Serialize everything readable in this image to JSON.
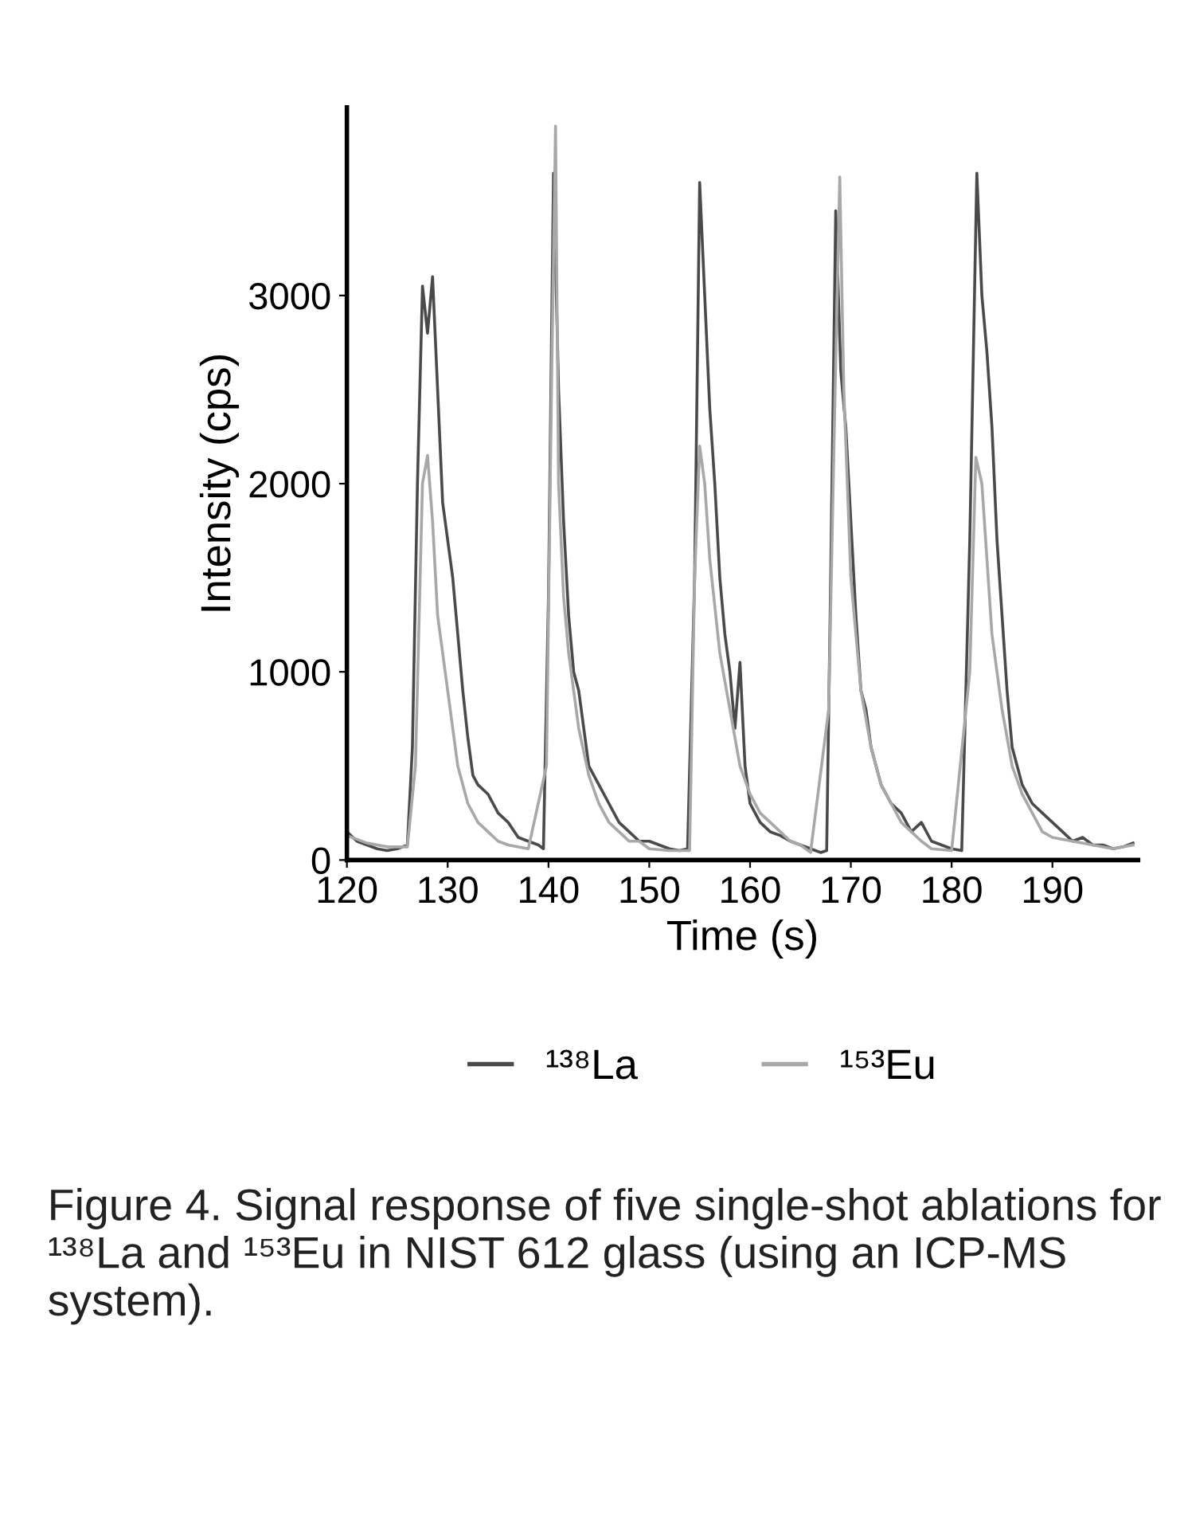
{
  "chart_data": {
    "type": "line",
    "xlabel": "Time (s)",
    "ylabel": "Intensity (cps)",
    "xlim": [
      120,
      198.5
    ],
    "ylim": [
      0,
      4000
    ],
    "xticks": [
      120,
      130,
      140,
      150,
      160,
      170,
      180,
      190
    ],
    "yticks": [
      0,
      1000,
      2000,
      3000
    ],
    "grid": false,
    "legend": "bottom",
    "marker": "none",
    "line_style": "solid",
    "annotations": [
      "Figure 4. Signal response of five single-shot ablations for ¹³⁸La and ¹⁵³Eu in NIST 612 glass (using an ICP-MS system)."
    ],
    "series": [
      {
        "name": "¹³⁸La",
        "color": "#4a4a4a",
        "x": [
          120,
          121,
          122,
          123,
          124,
          125,
          126,
          126.5,
          127,
          127.5,
          128,
          128.5,
          129,
          129.5,
          130,
          130.5,
          131,
          131.5,
          132,
          132.5,
          133,
          134,
          135,
          136,
          137,
          138,
          139,
          139.5,
          140,
          140.5,
          141,
          141.5,
          142,
          142.5,
          143,
          143.5,
          144,
          145,
          146,
          147,
          148,
          149,
          150,
          151,
          152,
          153,
          153.8,
          154.5,
          155,
          155.5,
          156,
          156.5,
          157,
          157.5,
          158,
          158.5,
          159,
          159.5,
          160,
          161,
          162,
          163,
          164,
          165,
          166,
          167,
          167.6,
          168,
          168.5,
          169,
          169.5,
          170,
          170.5,
          171,
          171.5,
          172,
          173,
          174,
          175,
          176,
          177,
          178,
          179,
          180,
          181,
          181.8,
          182.5,
          183,
          183.5,
          184,
          184.5,
          185,
          185.5,
          186,
          186.5,
          187,
          188,
          189,
          190,
          191,
          192,
          193,
          194,
          195,
          196,
          197,
          198
        ],
        "values": [
          150,
          100,
          80,
          60,
          50,
          60,
          80,
          600,
          2000,
          3050,
          2800,
          3100,
          2500,
          1900,
          1700,
          1500,
          1200,
          900,
          650,
          450,
          400,
          350,
          250,
          200,
          120,
          100,
          80,
          60,
          1400,
          3650,
          2500,
          1800,
          1300,
          1000,
          900,
          700,
          500,
          400,
          300,
          200,
          150,
          100,
          100,
          80,
          60,
          50,
          60,
          1500,
          3600,
          3000,
          2400,
          2000,
          1500,
          1200,
          1000,
          700,
          1050,
          500,
          300,
          200,
          150,
          130,
          100,
          80,
          60,
          40,
          50,
          1500,
          3450,
          2600,
          2300,
          1800,
          1300,
          900,
          800,
          600,
          400,
          300,
          250,
          150,
          200,
          100,
          80,
          60,
          50,
          1700,
          3650,
          3000,
          2700,
          2300,
          1700,
          1300,
          900,
          600,
          500,
          400,
          300,
          250,
          200,
          150,
          100,
          120,
          80,
          80,
          60,
          70,
          90
        ]
      },
      {
        "name": "¹⁵³Eu",
        "color": "#a8a8a8",
        "x": [
          120,
          122,
          124,
          126,
          126.8,
          127.5,
          128,
          128.5,
          129,
          129.5,
          130,
          131,
          132,
          133,
          134,
          135,
          136,
          138,
          139.8,
          140.3,
          140.7,
          141,
          141.5,
          142,
          143,
          144,
          145,
          146,
          147,
          148,
          149,
          150,
          152,
          154,
          154.5,
          155,
          155.5,
          156,
          157,
          158,
          159,
          160,
          161,
          162,
          163,
          164,
          165,
          166,
          167.8,
          168.4,
          168.9,
          169.3,
          170,
          171,
          172,
          173,
          174,
          175,
          176,
          177,
          178,
          180,
          181.8,
          182.4,
          183,
          183.5,
          184,
          185,
          186,
          187,
          188,
          189,
          190,
          192,
          194,
          196,
          198
        ],
        "values": [
          130,
          90,
          70,
          70,
          500,
          2000,
          2150,
          1800,
          1300,
          1100,
          900,
          500,
          300,
          200,
          150,
          100,
          80,
          60,
          500,
          2500,
          3900,
          2000,
          1400,
          1100,
          700,
          450,
          300,
          200,
          150,
          100,
          100,
          60,
          50,
          50,
          1500,
          2200,
          2000,
          1600,
          1100,
          800,
          500,
          350,
          250,
          200,
          150,
          100,
          80,
          40,
          800,
          2400,
          3630,
          2500,
          1500,
          900,
          600,
          400,
          300,
          200,
          150,
          100,
          60,
          50,
          1000,
          2140,
          2000,
          1600,
          1200,
          800,
          500,
          350,
          250,
          150,
          120,
          100,
          80,
          60,
          80
        ]
      }
    ]
  }
}
